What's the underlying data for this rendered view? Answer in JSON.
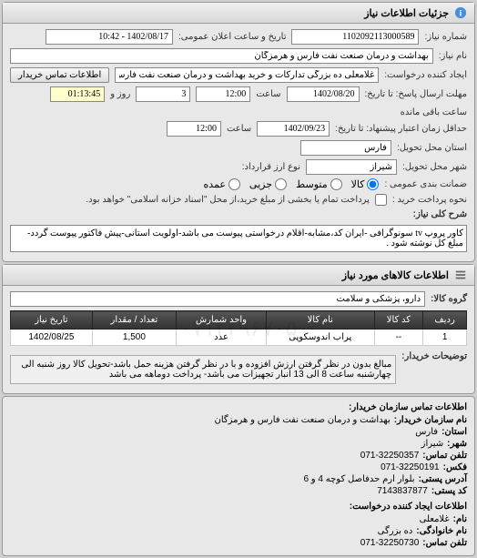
{
  "panel1": {
    "title": "جزئیات اطلاعات نیاز",
    "request_number_label": "شماره نیاز:",
    "request_number": "1102092113000589",
    "announce_label": "تاریخ و ساعت اعلان عمومی:",
    "announce_value": "1402/08/17 - 10:42",
    "requester_label": "ایجاد کننده درخواست:",
    "requester_value": "غلامعلی ده بزرگی تدارکات و خرید بهداشت و درمان صنعت نفت فارس و هرمزگ",
    "contact_btn": "اطلاعات تماس خریدار",
    "need_name_label": "نام نیاز:",
    "need_name_value": "بهداشت و درمان صنعت نفت فارس و هرمزگان",
    "deadline_from_label": "مهلت ارسال پاسخ: تا تاریخ:",
    "deadline_from_date": "1402/08/20",
    "time_label": "ساعت",
    "deadline_from_time": "12:00",
    "days_label": "روز و",
    "days_value": "3",
    "remaining_label": "ساعت باقی مانده",
    "remaining_time": "01:13:45",
    "deadline_to_label": "حداقل زمان اعتبار پیشنهاد: تا تاریخ:",
    "deadline_to_date": "1402/09/23",
    "deadline_to_time": "12:00",
    "province_label": "استان محل تحویل:",
    "province_value": "فارس",
    "city_label": "شهر محل تحویل:",
    "city_value": "شیراز",
    "currency_label": "نوع ارز قرارداد:",
    "package_label": "ضمانت بندی عمومی :",
    "radio_goods": "کالا",
    "radio_medium": "متوسط",
    "radio_partial": "جزیی",
    "radio_high": "عمده",
    "payment_label": "نحوه پرداخت خرید :",
    "payment_note": "پرداخت تمام یا بخشی از مبلغ خرید،از محل \"اسناد خزانه اسلامی\" خواهد بود.",
    "description_label": "شرح کلی نیاز:",
    "description_value": "کاور پروپ tv سونوگرافی -ایران کد،مشابه-اقلام درخواستی پیوست می باشد-اولویت استانی-پیش فاکتور پیوست گردد-مبلغ کل نوشته شود ."
  },
  "panel2": {
    "title": "اطلاعات کالاهای مورد نیاز",
    "group_label": "گروه کالا:",
    "group_value": "دارو، پزشکی و سلامت",
    "columns": [
      "ردیف",
      "کد کالا",
      "نام کالا",
      "واحد شمارش",
      "تعداد / مقدار",
      "تاریخ نیاز"
    ],
    "rows": [
      [
        "1",
        "--",
        "پراب اندوسکوپی",
        "عدد",
        "1,500",
        "1402/08/25"
      ]
    ],
    "notes_label": "توضیحات خریدار:",
    "notes_value": "مبالغ بدون در نظر گرفتن ارزش افزوده و با در نظر گرفتن هزینه حمل باشد-تحویل کالا روز شنبه الی چهارشنبه ساعت 8 الی 13 انبار تجهیزات می باشد- پرداخت دوماهه می باشد",
    "watermark": "۰۷۱۳۴۹۶۷۰۵"
  },
  "contact_section": {
    "title": "اطلاعات تماس سازمان خریدار:",
    "org_label": "نام سازمان خریدار:",
    "org_value": "بهداشت و درمان صنعت نفت فارس و هرمزگان",
    "province_label": "استان:",
    "province_value": "فارس",
    "city_label": "شهر:",
    "city_value": "شیراز",
    "phone_label": "تلفن تماس:",
    "phone_value": "071-32250357",
    "fax_label": "فکس:",
    "fax_value": "071-32250191",
    "address_label": "آدرس پستی:",
    "address_value": "بلوار ارم حدفاصل کوچه 4 و 6",
    "postal_label": "کد پستی:",
    "postal_value": "7143837877",
    "creator_title": "اطلاعات ایجاد کننده درخواست:",
    "name_label": "نام:",
    "name_value": "غلامعلی",
    "surname_label": "نام خانوادگی:",
    "surname_value": "ده بزرگی",
    "creator_phone_label": "تلفن تماس:",
    "creator_phone_value": "071-32250730"
  }
}
